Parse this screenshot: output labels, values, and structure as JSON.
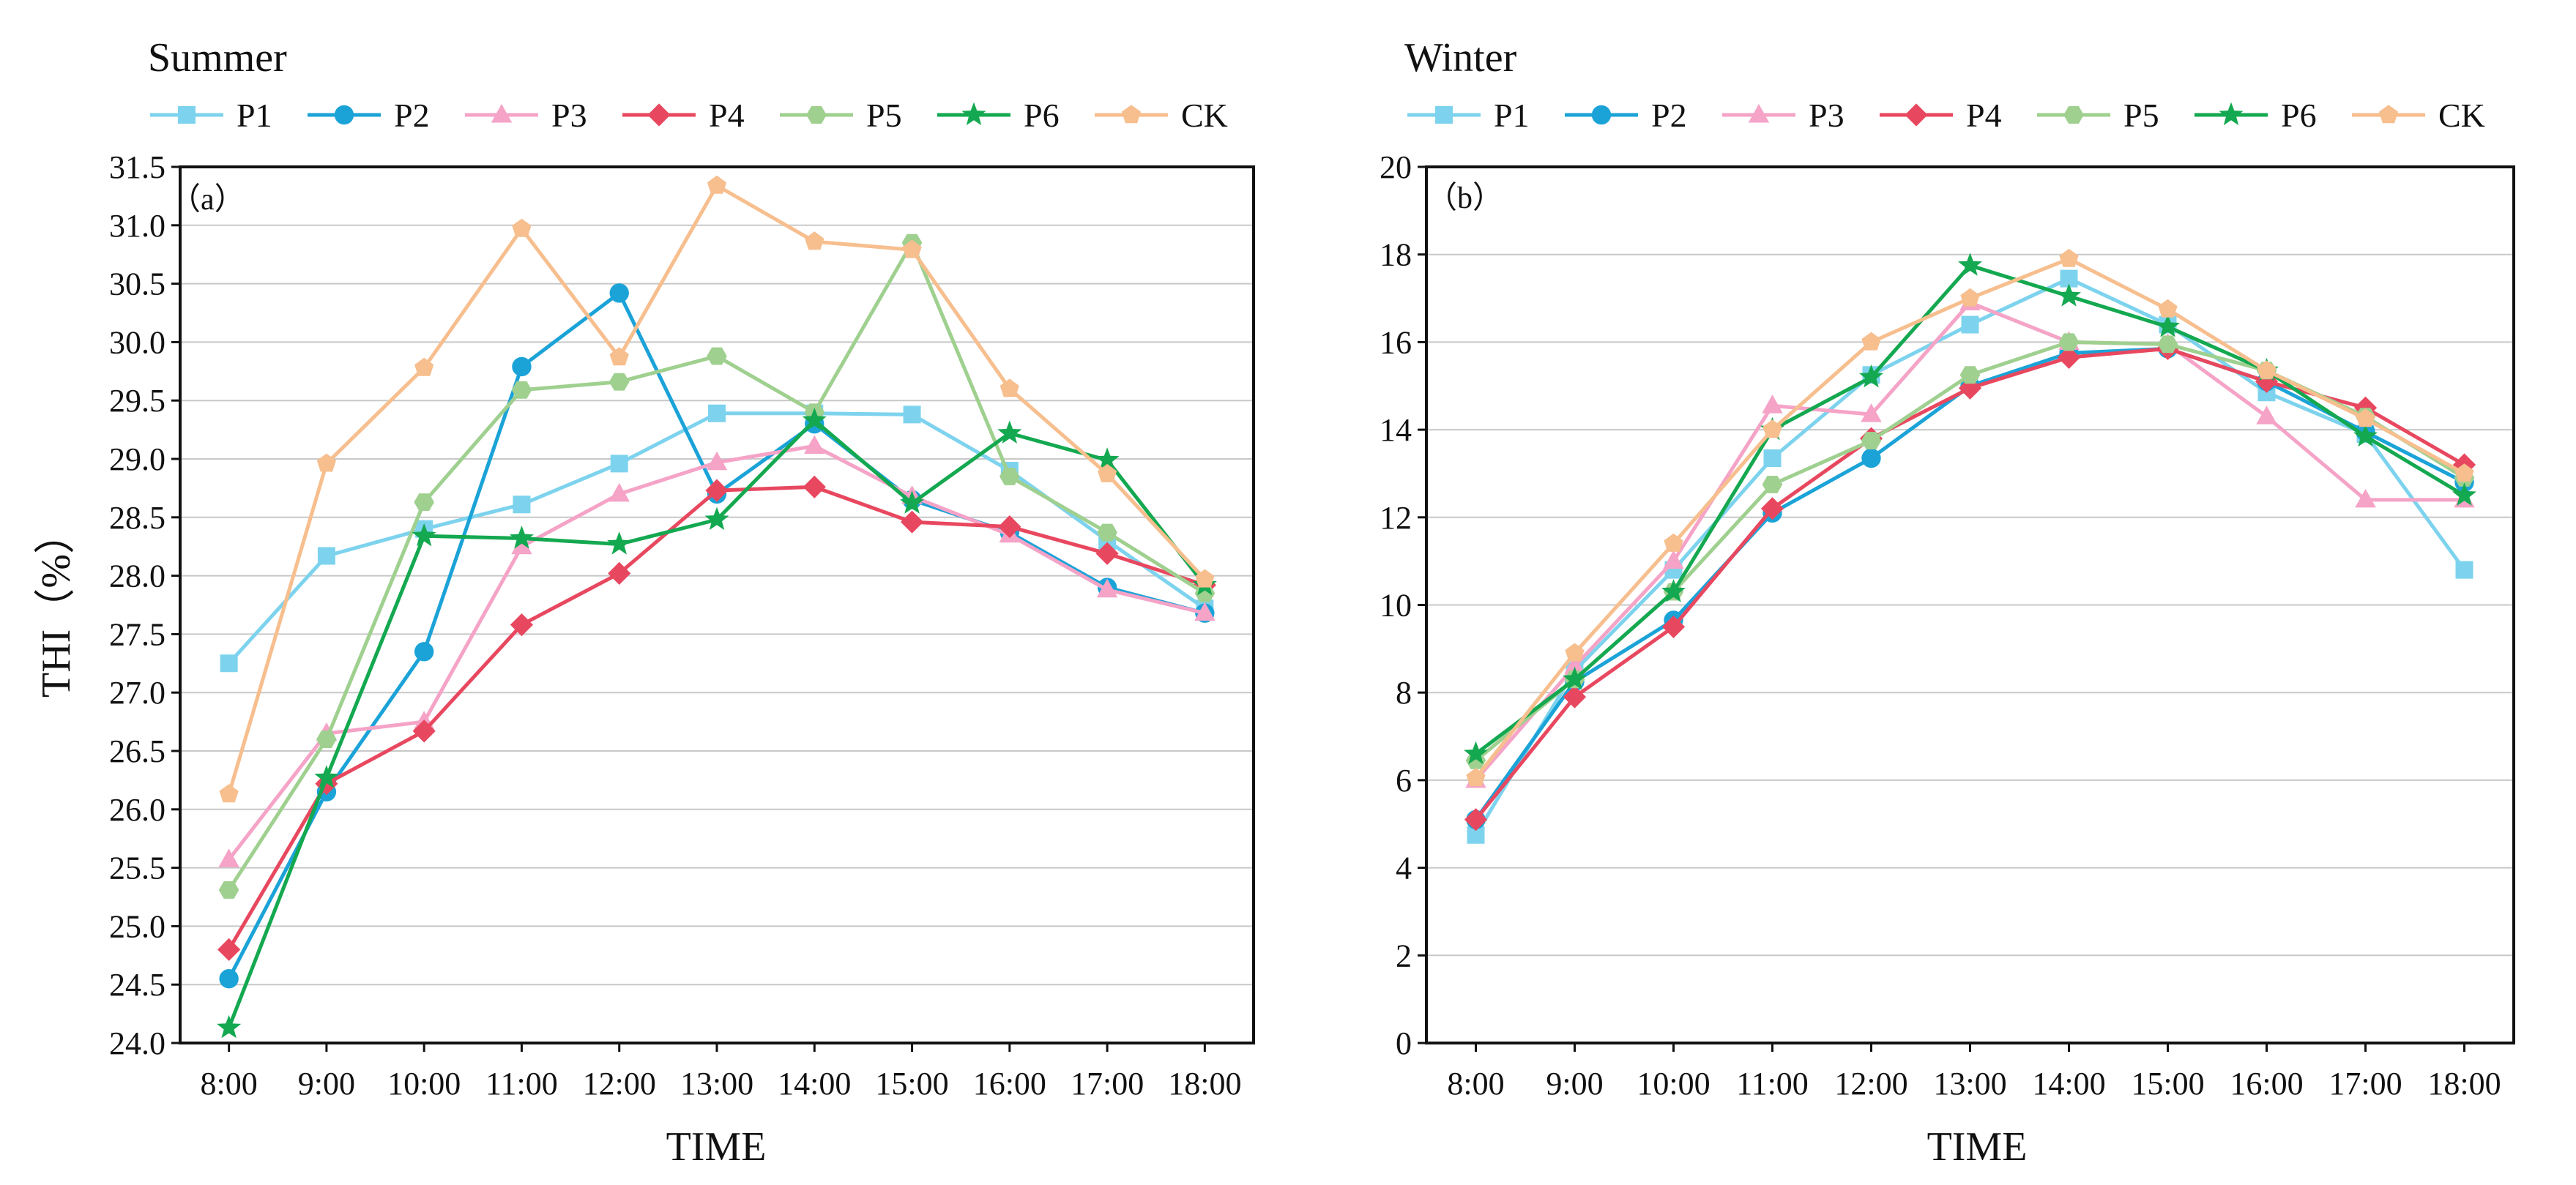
{
  "chart_data": [
    {
      "type": "line",
      "title": "Summer",
      "panel_tag": "（a）",
      "xlabel": "TIME",
      "ylabel": "THI（%）",
      "categories": [
        "8:00",
        "9:00",
        "10:00",
        "11:00",
        "12:00",
        "13:00",
        "14:00",
        "15:00",
        "16:00",
        "17:00",
        "18:00"
      ],
      "ylim": [
        24.0,
        31.5
      ],
      "yticks": [
        "24.0",
        "24.5",
        "25.0",
        "25.5",
        "26.0",
        "26.5",
        "27.0",
        "27.5",
        "28.0",
        "28.5",
        "29.0",
        "29.5",
        "30.0",
        "30.5",
        "31.0",
        "31.5"
      ],
      "grid": true,
      "legend_position": "top",
      "series": [
        {
          "name": "P1",
          "color": "#7dd3ee",
          "marker": "square",
          "values": [
            27.25,
            28.17,
            28.4,
            28.61,
            28.96,
            29.39,
            29.39,
            29.38,
            28.9,
            28.3,
            27.72
          ]
        },
        {
          "name": "P2",
          "color": "#1ba3d8",
          "marker": "circle",
          "values": [
            24.55,
            26.15,
            27.35,
            29.79,
            30.42,
            28.7,
            29.3,
            28.65,
            28.37,
            27.9,
            27.68
          ]
        },
        {
          "name": "P3",
          "color": "#f5a3c7",
          "marker": "triangle",
          "values": [
            25.57,
            26.65,
            26.75,
            28.25,
            28.7,
            28.97,
            29.11,
            28.68,
            28.35,
            27.88,
            27.68
          ]
        },
        {
          "name": "P4",
          "color": "#e8485f",
          "marker": "diamond",
          "values": [
            24.8,
            26.22,
            26.67,
            27.58,
            28.02,
            28.73,
            28.76,
            28.46,
            28.42,
            28.19,
            27.92
          ]
        },
        {
          "name": "P5",
          "color": "#9fd08f",
          "marker": "hexagon",
          "values": [
            25.31,
            26.6,
            28.63,
            29.59,
            29.66,
            29.88,
            29.4,
            30.85,
            28.85,
            28.37,
            27.85
          ]
        },
        {
          "name": "P6",
          "color": "#14a850",
          "marker": "star",
          "values": [
            24.13,
            26.27,
            28.34,
            28.32,
            28.27,
            28.48,
            29.33,
            28.62,
            29.22,
            28.99,
            27.92
          ]
        },
        {
          "name": "CK",
          "color": "#f7be8e",
          "marker": "pentagon",
          "values": [
            26.13,
            28.96,
            29.78,
            30.97,
            29.87,
            31.34,
            30.86,
            30.79,
            29.6,
            28.87,
            27.97
          ]
        }
      ]
    },
    {
      "type": "line",
      "title": "Winter",
      "panel_tag": "（b）",
      "xlabel": "TIME",
      "ylabel": "",
      "categories": [
        "8:00",
        "9:00",
        "10:00",
        "11:00",
        "12:00",
        "13:00",
        "14:00",
        "15:00",
        "16:00",
        "17:00",
        "18:00"
      ],
      "ylim": [
        0,
        20
      ],
      "yticks": [
        "0",
        "2",
        "4",
        "6",
        "8",
        "10",
        "12",
        "14",
        "16",
        "18",
        "20"
      ],
      "grid": true,
      "legend_position": "top",
      "series": [
        {
          "name": "P1",
          "color": "#7dd3ee",
          "marker": "square",
          "values": [
            4.75,
            8.5,
            10.8,
            13.35,
            15.25,
            16.4,
            17.45,
            16.4,
            14.85,
            13.9,
            10.8
          ]
        },
        {
          "name": "P2",
          "color": "#1ba3d8",
          "marker": "circle",
          "values": [
            5.1,
            8.25,
            9.65,
            12.1,
            13.35,
            15.0,
            15.75,
            15.85,
            15.1,
            13.95,
            12.8
          ]
        },
        {
          "name": "P3",
          "color": "#f5a3c7",
          "marker": "triangle",
          "values": [
            6.0,
            8.6,
            11.0,
            14.55,
            14.35,
            16.9,
            16.0,
            15.95,
            14.3,
            12.4,
            12.4
          ]
        },
        {
          "name": "P4",
          "color": "#e8485f",
          "marker": "diamond",
          "values": [
            5.1,
            7.9,
            9.5,
            12.2,
            13.8,
            14.95,
            15.65,
            15.85,
            15.1,
            14.5,
            13.2
          ]
        },
        {
          "name": "P5",
          "color": "#9fd08f",
          "marker": "hexagon",
          "values": [
            6.45,
            8.3,
            10.3,
            12.75,
            13.75,
            15.25,
            16.0,
            15.95,
            15.35,
            14.3,
            12.9
          ]
        },
        {
          "name": "P6",
          "color": "#14a850",
          "marker": "star",
          "values": [
            6.6,
            8.3,
            10.3,
            14.0,
            15.2,
            17.75,
            17.05,
            16.35,
            15.35,
            13.85,
            12.5
          ]
        },
        {
          "name": "CK",
          "color": "#f7be8e",
          "marker": "pentagon",
          "values": [
            6.05,
            8.9,
            11.4,
            14.0,
            16.0,
            17.0,
            17.9,
            16.75,
            15.35,
            14.25,
            13.0
          ]
        }
      ]
    }
  ]
}
